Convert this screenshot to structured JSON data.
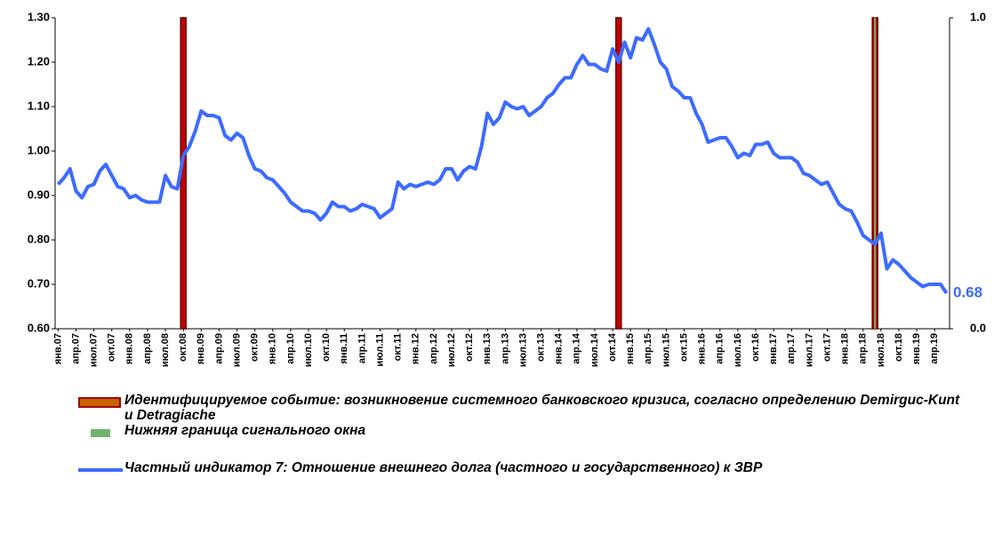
{
  "chart_data": {
    "type": "line",
    "categories": [
      "янв.07",
      null,
      null,
      "апр.07",
      null,
      null,
      "июл.07",
      null,
      null,
      "окт.07",
      null,
      null,
      "янв.08",
      null,
      null,
      "апр.08",
      null,
      null,
      "июл.08",
      null,
      null,
      "окт.08",
      null,
      null,
      "янв.09",
      null,
      null,
      "апр.09",
      null,
      null,
      "июл.09",
      null,
      null,
      "окт.09",
      null,
      null,
      "янв.10",
      null,
      null,
      "апр.10",
      null,
      null,
      "июл.10",
      null,
      null,
      "окт.10",
      null,
      null,
      "янв.11",
      null,
      null,
      "апр.11",
      null,
      null,
      "июл.11",
      null,
      null,
      "окт.11",
      null,
      null,
      "янв.12",
      null,
      null,
      "апр.12",
      null,
      null,
      "июл.12",
      null,
      null,
      "окт.12",
      null,
      null,
      "янв.13",
      null,
      null,
      "апр.13",
      null,
      null,
      "июл.13",
      null,
      null,
      "окт.13",
      null,
      null,
      "янв.14",
      null,
      null,
      "апр.14",
      null,
      null,
      "июл.14",
      null,
      null,
      "окт.14",
      null,
      null,
      "янв.15",
      null,
      null,
      "апр.15",
      null,
      null,
      "июл.15",
      null,
      null,
      "окт.15",
      null,
      null,
      "янв.16",
      null,
      null,
      "апр.16",
      null,
      null,
      "июл.16",
      null,
      null,
      "окт.16",
      null,
      null,
      "янв.17",
      null,
      null,
      "апр.17",
      null,
      null,
      "июл.17",
      null,
      null,
      "окт.17",
      null,
      null,
      "янв.18",
      null,
      null,
      "апр.18",
      null,
      null,
      "июл.18",
      null,
      null,
      "окт.18",
      null,
      null,
      "янв.19",
      null,
      null,
      "апр.19",
      null,
      null
    ],
    "series": [
      {
        "name": "Идентифицируемое событие: возникновение системного банковского кризиса, согласно определению Demirguc-Kunt и Detragiache",
        "type": "bar",
        "axis": "y2",
        "color": "#a00000",
        "values": [
          null,
          null,
          null,
          null,
          null,
          null,
          null,
          null,
          null,
          null,
          null,
          null,
          null,
          null,
          null,
          null,
          null,
          null,
          null,
          null,
          null,
          1,
          null,
          null,
          null,
          null,
          null,
          null,
          null,
          null,
          null,
          null,
          null,
          null,
          null,
          null,
          null,
          null,
          null,
          null,
          null,
          null,
          null,
          null,
          null,
          null,
          null,
          null,
          null,
          null,
          null,
          null,
          null,
          null,
          null,
          null,
          null,
          null,
          null,
          null,
          null,
          null,
          null,
          null,
          null,
          null,
          null,
          null,
          null,
          null,
          null,
          null,
          null,
          null,
          null,
          null,
          null,
          null,
          null,
          null,
          null,
          null,
          null,
          null,
          null,
          null,
          null,
          null,
          null,
          null,
          null,
          null,
          null,
          null,
          1,
          null,
          null,
          null,
          null,
          null,
          null,
          null,
          null,
          null,
          null,
          null,
          null,
          null,
          null,
          null,
          null,
          null,
          null,
          null,
          null,
          null,
          null,
          null,
          null,
          null,
          null,
          null,
          null,
          null,
          null,
          null,
          null,
          null,
          null,
          null,
          null,
          null,
          null,
          null,
          null,
          null,
          null,
          1,
          null,
          null,
          null,
          null,
          null,
          null,
          null,
          null,
          null,
          null,
          null,
          null
        ]
      },
      {
        "name": "Нижняя граница сигнального окна",
        "type": "vline",
        "axis": "y2",
        "color": "#6fb36f",
        "values": [
          null,
          null,
          null,
          null,
          null,
          null,
          null,
          null,
          null,
          null,
          null,
          null,
          null,
          null,
          null,
          null,
          null,
          null,
          null,
          null,
          null,
          null,
          null,
          null,
          null,
          null,
          null,
          null,
          null,
          null,
          null,
          null,
          null,
          null,
          null,
          null,
          null,
          null,
          null,
          null,
          null,
          null,
          null,
          null,
          null,
          null,
          null,
          null,
          null,
          null,
          null,
          null,
          null,
          null,
          null,
          null,
          null,
          null,
          null,
          null,
          null,
          null,
          null,
          null,
          null,
          null,
          null,
          null,
          null,
          null,
          null,
          null,
          null,
          null,
          null,
          null,
          null,
          null,
          null,
          null,
          null,
          null,
          null,
          null,
          null,
          null,
          null,
          null,
          null,
          null,
          null,
          null,
          null,
          null,
          null,
          null,
          null,
          null,
          null,
          null,
          null,
          null,
          null,
          null,
          null,
          null,
          null,
          null,
          null,
          null,
          null,
          null,
          null,
          null,
          null,
          null,
          null,
          null,
          null,
          null,
          null,
          null,
          null,
          null,
          null,
          null,
          null,
          null,
          null,
          null,
          null,
          null,
          null,
          null,
          null,
          null,
          null,
          1,
          null,
          null,
          null,
          null,
          null,
          null,
          null,
          null,
          null,
          null,
          null,
          null
        ]
      },
      {
        "name": "Частный индикатор 7: Отношение внешнего долга (частного и государственного) к ЗВР",
        "type": "line",
        "color": "#3d6bff",
        "values": [
          0.925,
          0.94,
          0.96,
          0.91,
          0.895,
          0.92,
          0.925,
          0.955,
          0.97,
          0.945,
          0.92,
          0.915,
          0.895,
          0.9,
          0.89,
          0.885,
          0.885,
          0.885,
          0.945,
          0.92,
          0.915,
          0.99,
          1.01,
          1.045,
          1.09,
          1.08,
          1.08,
          1.075,
          1.035,
          1.025,
          1.04,
          1.03,
          0.99,
          0.96,
          0.955,
          0.94,
          0.935,
          0.92,
          0.905,
          0.885,
          0.875,
          0.865,
          0.865,
          0.86,
          0.845,
          0.86,
          0.885,
          0.875,
          0.875,
          0.865,
          0.87,
          0.88,
          0.875,
          0.87,
          0.85,
          0.86,
          0.87,
          0.93,
          0.915,
          0.925,
          0.92,
          0.925,
          0.93,
          0.925,
          0.935,
          0.96,
          0.96,
          0.935,
          0.955,
          0.965,
          0.96,
          1.01,
          1.085,
          1.06,
          1.075,
          1.11,
          1.1,
          1.095,
          1.1,
          1.08,
          1.09,
          1.1,
          1.12,
          1.13,
          1.15,
          1.165,
          1.165,
          1.195,
          1.215,
          1.195,
          1.195,
          1.185,
          1.18,
          1.23,
          1.2,
          1.245,
          1.21,
          1.255,
          1.25,
          1.275,
          1.24,
          1.2,
          1.185,
          1.145,
          1.135,
          1.12,
          1.12,
          1.085,
          1.06,
          1.02,
          1.025,
          1.03,
          1.03,
          1.01,
          0.985,
          0.995,
          0.99,
          1.015,
          1.015,
          1.02,
          0.995,
          0.985,
          0.985,
          0.985,
          0.975,
          0.95,
          0.945,
          0.935,
          0.925,
          0.93,
          0.905,
          0.88,
          0.87,
          0.865,
          0.84,
          0.81,
          0.8,
          0.79,
          0.815,
          0.735,
          0.755,
          0.745,
          0.73,
          0.715,
          0.705,
          0.695,
          0.7,
          0.7,
          0.7,
          0.68
        ]
      }
    ],
    "ylim": [
      0.6,
      1.3
    ],
    "yticks": [
      {
        "value": 0.6,
        "label": "0.60"
      },
      {
        "value": 0.7,
        "label": "0.70"
      },
      {
        "value": 0.8,
        "label": "0.80"
      },
      {
        "value": 0.9,
        "label": "0.90"
      },
      {
        "value": 1.0,
        "label": "1.00"
      },
      {
        "value": 1.1,
        "label": "1.10"
      },
      {
        "value": 1.2,
        "label": "1.20"
      },
      {
        "value": 1.3,
        "label": "1.30"
      }
    ],
    "y2lim": [
      0,
      1
    ],
    "y2ticks": [
      {
        "value": 0,
        "label": "0.0"
      },
      {
        "value": 1,
        "label": "1.0"
      }
    ],
    "grid": false,
    "legend": "bottom"
  }
}
